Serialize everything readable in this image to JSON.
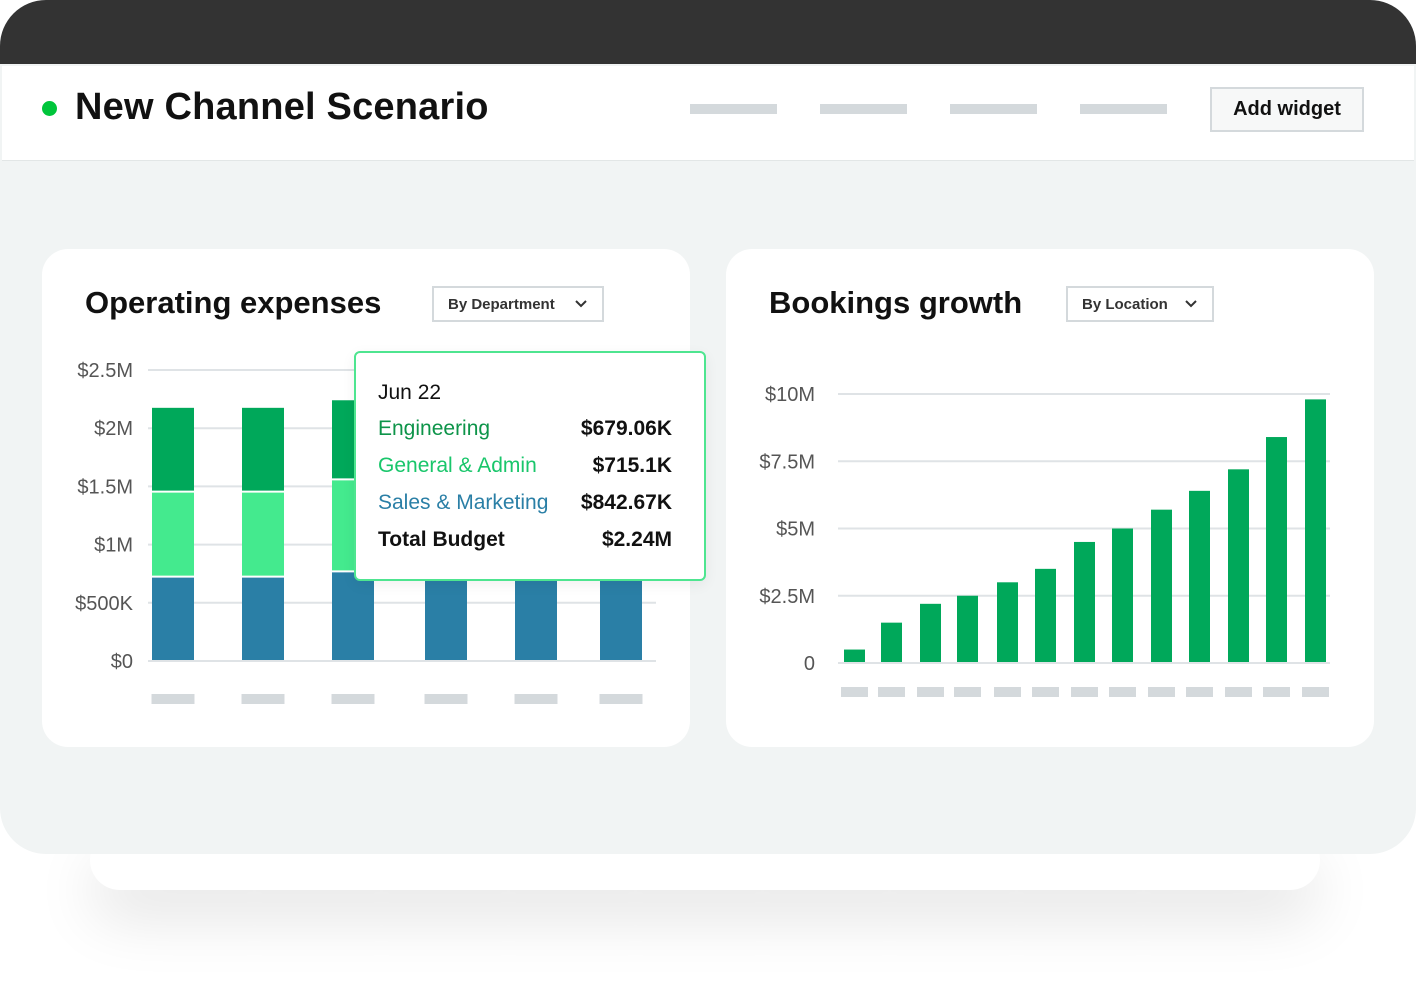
{
  "header": {
    "title": "New Channel Scenario",
    "add_widget_label": "Add widget",
    "status_color": "#00c53b"
  },
  "operating_expenses": {
    "title": "Operating expenses",
    "dropdown": "By Department",
    "tooltip": {
      "date": "Jun 22",
      "rows": [
        {
          "label": "Engineering",
          "value": "$679.06K",
          "color": "#0d9449"
        },
        {
          "label": "General & Admin",
          "value": "$715.1K",
          "color": "#19c66b"
        },
        {
          "label": "Sales & Marketing",
          "value": "$842.67K",
          "color": "#2a7fa6"
        },
        {
          "label": "Total Budget",
          "value": "$2.24M",
          "color": "#111111"
        }
      ]
    }
  },
  "bookings_growth": {
    "title": "Bookings growth",
    "dropdown": "By Location"
  },
  "chart_data": [
    {
      "type": "bar",
      "stacked": true,
      "title": "Operating expenses",
      "ytick_labels": [
        "$0",
        "$500K",
        "$1M",
        "$1.5M",
        "$2M",
        "$2.5M"
      ],
      "ylim": [
        0,
        2.5
      ],
      "grid": true,
      "categories": [
        "",
        "",
        "",
        "",
        "",
        ""
      ],
      "series": [
        {
          "name": "Sales & Marketing",
          "color": "#2a7fa6",
          "values": [
            0.725,
            0.725,
            0.77,
            0.72,
            0.72,
            0.72
          ]
        },
        {
          "name": "General & Admin",
          "color": "#44ea8e",
          "values": [
            0.73,
            0.73,
            0.79,
            null,
            null,
            null
          ]
        },
        {
          "name": "Engineering",
          "color": "#00a85a",
          "values": [
            0.72,
            0.72,
            0.68,
            null,
            null,
            null
          ]
        }
      ]
    },
    {
      "type": "bar",
      "title": "Bookings growth",
      "ytick_labels": [
        "0",
        "$2.5M",
        "$5M",
        "$7.5M",
        "$10M"
      ],
      "ylim": [
        0,
        10
      ],
      "grid": true,
      "categories": [
        "",
        "",
        "",
        "",
        "",
        "",
        "",
        "",
        "",
        "",
        "",
        "",
        ""
      ],
      "series": [
        {
          "color": "#00a85a",
          "values": [
            0.5,
            1.5,
            2.2,
            2.5,
            3.0,
            3.5,
            4.5,
            5.0,
            5.7,
            6.4,
            7.2,
            8.4,
            9.8
          ]
        }
      ]
    }
  ]
}
